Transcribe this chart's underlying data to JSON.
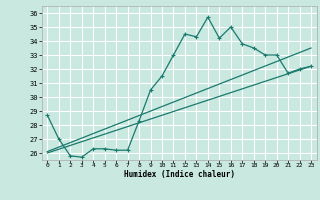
{
  "background_color": "#c8e8e0",
  "grid_color": "#ffffff",
  "line_color": "#1a7a6e",
  "xlabel": "Humidex (Indice chaleur)",
  "xlim": [
    -0.5,
    23.5
  ],
  "ylim": [
    25.5,
    36.5
  ],
  "xticks": [
    0,
    1,
    2,
    3,
    4,
    5,
    6,
    7,
    8,
    9,
    10,
    11,
    12,
    13,
    14,
    15,
    16,
    17,
    18,
    19,
    20,
    21,
    22,
    23
  ],
  "yticks": [
    26,
    27,
    28,
    29,
    30,
    31,
    32,
    33,
    34,
    35,
    36
  ],
  "line1_x": [
    0,
    1,
    2,
    3,
    4,
    5,
    6,
    7,
    8,
    9,
    10,
    11,
    12,
    13,
    14,
    15,
    16,
    17,
    18,
    19,
    20,
    21,
    22,
    23
  ],
  "line1_y": [
    28.7,
    27.0,
    25.8,
    25.7,
    26.3,
    26.3,
    26.2,
    26.2,
    28.3,
    30.5,
    31.5,
    33.0,
    34.5,
    34.3,
    35.7,
    34.2,
    35.0,
    33.8,
    33.5,
    33.0,
    33.0,
    31.7,
    32.0,
    32.2
  ],
  "line2_x": [
    0,
    23
  ],
  "line2_y": [
    26.1,
    33.5
  ],
  "line3_x": [
    0,
    23
  ],
  "line3_y": [
    26.0,
    32.2
  ],
  "marker_size": 3.5,
  "lw": 0.9
}
